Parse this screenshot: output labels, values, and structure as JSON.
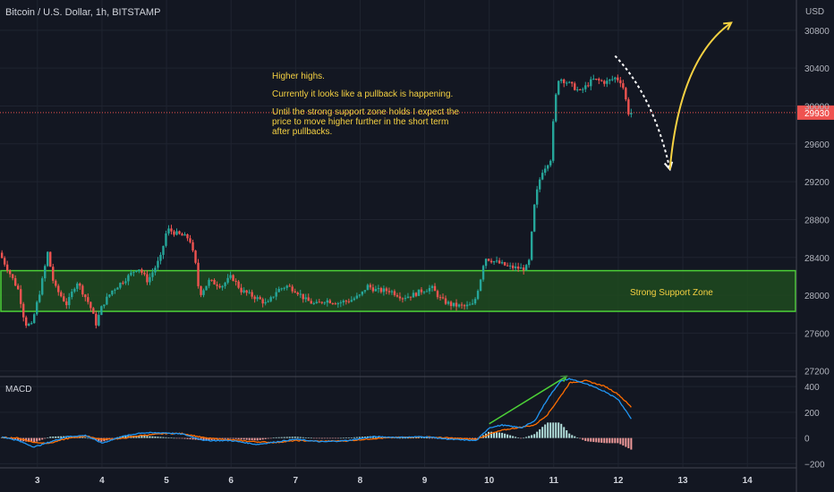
{
  "header": {
    "title": "Bitcoin / U.S. Dollar, 1h, BITSTAMP",
    "currency": "USD"
  },
  "price_panel": {
    "y_ticks": [
      {
        "label": "30800",
        "value": 30800
      },
      {
        "label": "30400",
        "value": 30400
      },
      {
        "label": "30000",
        "value": 30000
      },
      {
        "label": "29600",
        "value": 29600
      },
      {
        "label": "29200",
        "value": 29200
      },
      {
        "label": "28800",
        "value": 28800
      },
      {
        "label": "28400",
        "value": 28400
      },
      {
        "label": "28000",
        "value": 28000
      },
      {
        "label": "27600",
        "value": 27600
      },
      {
        "label": "27200",
        "value": 27200
      }
    ],
    "ylim": [
      27150,
      31120
    ],
    "last_price": {
      "label": "29930",
      "value": 29930,
      "color": "#ef5350"
    },
    "support_zone": {
      "label": "Strong Support Zone",
      "low": 27830,
      "high": 28260,
      "fill": "#1e4a1e",
      "stroke": "#4cd137",
      "text_color": "#f5d142"
    },
    "annotation": {
      "color": "#f5d142",
      "lines": [
        "Higher highs.",
        "",
        "Currently it looks like a pullback is happening.",
        "",
        "Until the strong support zone holds I expect the",
        "price to move higher further in the short term",
        "after pullbacks."
      ]
    },
    "arrows": [
      {
        "name": "pullback-arrow",
        "style": "dashed",
        "color": "#ffffff",
        "from": {
          "day": 11.95,
          "price": 30530
        },
        "ctrl": {
          "day": 12.55,
          "price": 30100
        },
        "to": {
          "day": 12.8,
          "price": 29330
        }
      },
      {
        "name": "rally-arrow",
        "style": "solid",
        "color": "#f5d142",
        "from": {
          "day": 12.8,
          "price": 29330
        },
        "ctrl": {
          "day": 12.95,
          "price": 30500
        },
        "to": {
          "day": 13.75,
          "price": 30880
        }
      }
    ]
  },
  "macd_panel": {
    "label": "MACD",
    "y_ticks": [
      {
        "label": "400",
        "value": 400
      },
      {
        "label": "200",
        "value": 200
      },
      {
        "label": "0",
        "value": 0
      },
      {
        "label": "−200",
        "value": -200
      }
    ],
    "ylim": [
      -225,
      470
    ],
    "macd_color": "#2196f3",
    "signal_color": "#ff6d00",
    "hist_up": "#b2dfdb",
    "hist_down": "#ef9a9a",
    "divergence_line": {
      "from": {
        "day": 10.0,
        "value": 110
      },
      "to": {
        "day": 11.2,
        "value": 480
      },
      "color": "#4cd137"
    }
  },
  "x_axis": {
    "ticks": [
      {
        "label": "3",
        "day": 3
      },
      {
        "label": "4",
        "day": 4
      },
      {
        "label": "5",
        "day": 5
      },
      {
        "label": "6",
        "day": 6
      },
      {
        "label": "7",
        "day": 7
      },
      {
        "label": "8",
        "day": 8
      },
      {
        "label": "9",
        "day": 9
      },
      {
        "label": "10",
        "day": 10
      },
      {
        "label": "11",
        "day": 11
      },
      {
        "label": "12",
        "day": 12
      },
      {
        "label": "13",
        "day": 13
      },
      {
        "label": "14",
        "day": 14
      }
    ],
    "xlim": [
      2.42,
      14.76
    ]
  },
  "chart_data": {
    "type": "candlestick",
    "title": "Bitcoin / U.S. Dollar, 1h, BITSTAMP",
    "ylabel": "USD",
    "up_color": "#26a69a",
    "down_color": "#ef5350",
    "price_points": [
      {
        "day": 2.45,
        "price": 28450
      },
      {
        "day": 2.6,
        "price": 28250
      },
      {
        "day": 2.75,
        "price": 28050
      },
      {
        "day": 2.85,
        "price": 27700
      },
      {
        "day": 2.95,
        "price": 27680
      },
      {
        "day": 3.1,
        "price": 28100
      },
      {
        "day": 3.2,
        "price": 28450
      },
      {
        "day": 3.3,
        "price": 28100
      },
      {
        "day": 3.5,
        "price": 27900
      },
      {
        "day": 3.65,
        "price": 28150
      },
      {
        "day": 3.85,
        "price": 27900
      },
      {
        "day": 3.95,
        "price": 27700
      },
      {
        "day": 4.05,
        "price": 27900
      },
      {
        "day": 4.2,
        "price": 28050
      },
      {
        "day": 4.45,
        "price": 28200
      },
      {
        "day": 4.6,
        "price": 28300
      },
      {
        "day": 4.75,
        "price": 28150
      },
      {
        "day": 4.95,
        "price": 28400
      },
      {
        "day": 5.05,
        "price": 28700
      },
      {
        "day": 5.2,
        "price": 28650
      },
      {
        "day": 5.4,
        "price": 28600
      },
      {
        "day": 5.5,
        "price": 28300
      },
      {
        "day": 5.55,
        "price": 28000
      },
      {
        "day": 5.7,
        "price": 28150
      },
      {
        "day": 5.9,
        "price": 28100
      },
      {
        "day": 6.05,
        "price": 28200
      },
      {
        "day": 6.2,
        "price": 28050
      },
      {
        "day": 6.35,
        "price": 28000
      },
      {
        "day": 6.5,
        "price": 27950
      },
      {
        "day": 6.6,
        "price": 27900
      },
      {
        "day": 6.75,
        "price": 28050
      },
      {
        "day": 6.9,
        "price": 28100
      },
      {
        "day": 7.05,
        "price": 28050
      },
      {
        "day": 7.2,
        "price": 27950
      },
      {
        "day": 7.35,
        "price": 27900
      },
      {
        "day": 7.5,
        "price": 27950
      },
      {
        "day": 7.7,
        "price": 27920
      },
      {
        "day": 7.9,
        "price": 27950
      },
      {
        "day": 8.05,
        "price": 28000
      },
      {
        "day": 8.15,
        "price": 28100
      },
      {
        "day": 8.3,
        "price": 28050
      },
      {
        "day": 8.5,
        "price": 28050
      },
      {
        "day": 8.7,
        "price": 27980
      },
      {
        "day": 8.85,
        "price": 28000
      },
      {
        "day": 9.0,
        "price": 28050
      },
      {
        "day": 9.15,
        "price": 28080
      },
      {
        "day": 9.3,
        "price": 27950
      },
      {
        "day": 9.45,
        "price": 27900
      },
      {
        "day": 9.65,
        "price": 27880
      },
      {
        "day": 9.8,
        "price": 27900
      },
      {
        "day": 9.9,
        "price": 28150
      },
      {
        "day": 9.97,
        "price": 28400
      },
      {
        "day": 10.15,
        "price": 28350
      },
      {
        "day": 10.35,
        "price": 28300
      },
      {
        "day": 10.55,
        "price": 28280
      },
      {
        "day": 10.65,
        "price": 28300
      },
      {
        "day": 10.75,
        "price": 29000
      },
      {
        "day": 10.85,
        "price": 29300
      },
      {
        "day": 11.0,
        "price": 29450
      },
      {
        "day": 11.05,
        "price": 30000
      },
      {
        "day": 11.12,
        "price": 30300
      },
      {
        "day": 11.25,
        "price": 30250
      },
      {
        "day": 11.45,
        "price": 30150
      },
      {
        "day": 11.65,
        "price": 30280
      },
      {
        "day": 11.85,
        "price": 30250
      },
      {
        "day": 12.0,
        "price": 30300
      },
      {
        "day": 12.1,
        "price": 30250
      },
      {
        "day": 12.2,
        "price": 29930
      }
    ],
    "macd_points": [
      {
        "day": 2.45,
        "macd": 10,
        "signal": 5
      },
      {
        "day": 2.7,
        "macd": -20,
        "signal": 0
      },
      {
        "day": 2.95,
        "macd": -70,
        "signal": -35
      },
      {
        "day": 3.2,
        "macd": -30,
        "signal": -40
      },
      {
        "day": 3.45,
        "macd": 10,
        "signal": -5
      },
      {
        "day": 3.75,
        "macd": 20,
        "signal": 15
      },
      {
        "day": 4.0,
        "macd": -40,
        "signal": -10
      },
      {
        "day": 4.3,
        "macd": 10,
        "signal": -5
      },
      {
        "day": 4.6,
        "macd": 40,
        "signal": 20
      },
      {
        "day": 5.0,
        "macd": 40,
        "signal": 35
      },
      {
        "day": 5.25,
        "macd": 30,
        "signal": 35
      },
      {
        "day": 5.6,
        "macd": -20,
        "signal": 0
      },
      {
        "day": 6.0,
        "macd": -20,
        "signal": -15
      },
      {
        "day": 6.4,
        "macd": -50,
        "signal": -30
      },
      {
        "day": 6.7,
        "macd": -30,
        "signal": -35
      },
      {
        "day": 7.0,
        "macd": -10,
        "signal": -20
      },
      {
        "day": 7.4,
        "macd": -30,
        "signal": -25
      },
      {
        "day": 7.8,
        "macd": -20,
        "signal": -22
      },
      {
        "day": 8.2,
        "macd": 10,
        "signal": -5
      },
      {
        "day": 8.6,
        "macd": 5,
        "signal": 5
      },
      {
        "day": 9.0,
        "macd": 10,
        "signal": 8
      },
      {
        "day": 9.4,
        "macd": -10,
        "signal": 0
      },
      {
        "day": 9.8,
        "macd": -20,
        "signal": -10
      },
      {
        "day": 10.0,
        "macd": 80,
        "signal": 30
      },
      {
        "day": 10.2,
        "macd": 100,
        "signal": 60
      },
      {
        "day": 10.5,
        "macd": 80,
        "signal": 85
      },
      {
        "day": 10.7,
        "macd": 130,
        "signal": 100
      },
      {
        "day": 10.9,
        "macd": 300,
        "signal": 180
      },
      {
        "day": 11.1,
        "macd": 440,
        "signal": 320
      },
      {
        "day": 11.25,
        "macd": 460,
        "signal": 430
      },
      {
        "day": 11.5,
        "macd": 420,
        "signal": 445
      },
      {
        "day": 11.8,
        "macd": 360,
        "signal": 400
      },
      {
        "day": 12.0,
        "macd": 300,
        "signal": 340
      },
      {
        "day": 12.2,
        "macd": 150,
        "signal": 240
      }
    ]
  }
}
